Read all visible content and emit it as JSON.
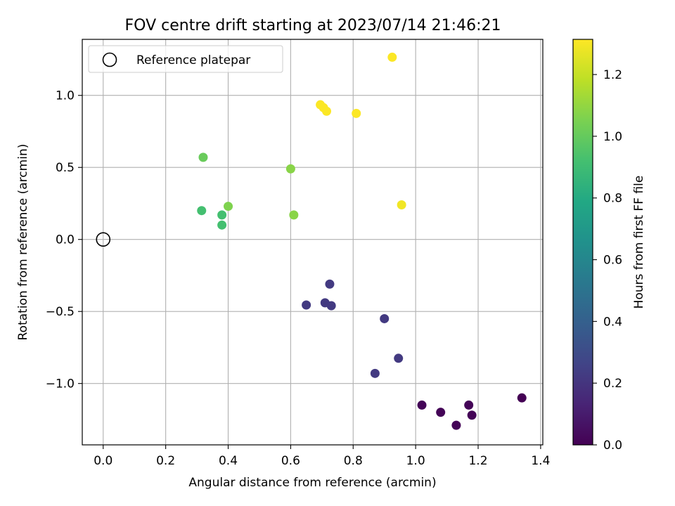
{
  "chart_data": {
    "type": "scatter",
    "title": "FOV centre drift starting at 2023/07/14 21:46:21",
    "xlabel": "Angular distance from reference (arcmin)",
    "ylabel": "Rotation from reference (arcmin)",
    "xlim": [
      -0.067,
      1.407
    ],
    "ylim": [
      -1.426,
      1.389
    ],
    "x_ticks": [
      0.0,
      0.2,
      0.4,
      0.6,
      0.8,
      1.0,
      1.2,
      1.4
    ],
    "x_tick_labels": [
      "0.0",
      "0.2",
      "0.4",
      "0.6",
      "0.8",
      "1.0",
      "1.2",
      "1.4"
    ],
    "y_ticks": [
      -1.0,
      -0.5,
      0.0,
      0.5,
      1.0
    ],
    "y_tick_labels": [
      "−1.0",
      "−0.5",
      "0.0",
      "0.5",
      "1.0"
    ],
    "grid": true,
    "legend": {
      "placement": "top-left",
      "entries": [
        "Reference platepar"
      ]
    },
    "reference_point": {
      "x": 0.0,
      "y": 0.0,
      "marker": "open-circle"
    },
    "colorbar": {
      "label": "Hours from first FF file",
      "colormap": "viridis",
      "range": [
        0.0,
        1.314
      ],
      "ticks": [
        0.0,
        0.2,
        0.4,
        0.6,
        0.8,
        1.0,
        1.2
      ],
      "tick_labels": [
        "0.0",
        "0.2",
        "0.4",
        "0.6",
        "0.8",
        "1.0",
        "1.2"
      ]
    },
    "points": [
      {
        "x": 1.34,
        "y": -1.1,
        "hours": 0.0
      },
      {
        "x": 1.02,
        "y": -1.15,
        "hours": 0.01
      },
      {
        "x": 1.08,
        "y": -1.2,
        "hours": 0.01
      },
      {
        "x": 1.13,
        "y": -1.29,
        "hours": 0.01
      },
      {
        "x": 1.17,
        "y": -1.15,
        "hours": 0.01
      },
      {
        "x": 1.18,
        "y": -1.22,
        "hours": 0.01
      },
      {
        "x": 0.87,
        "y": -0.93,
        "hours": 0.22
      },
      {
        "x": 0.945,
        "y": -0.825,
        "hours": 0.22
      },
      {
        "x": 0.9,
        "y": -0.55,
        "hours": 0.22
      },
      {
        "x": 0.65,
        "y": -0.455,
        "hours": 0.22
      },
      {
        "x": 0.71,
        "y": -0.44,
        "hours": 0.22
      },
      {
        "x": 0.73,
        "y": -0.46,
        "hours": 0.22
      },
      {
        "x": 0.725,
        "y": -0.31,
        "hours": 0.22
      },
      {
        "x": 0.315,
        "y": 0.2,
        "hours": 0.92
      },
      {
        "x": 0.38,
        "y": 0.1,
        "hours": 0.92
      },
      {
        "x": 0.38,
        "y": 0.17,
        "hours": 0.92
      },
      {
        "x": 0.32,
        "y": 0.57,
        "hours": 1.01
      },
      {
        "x": 0.4,
        "y": 0.23,
        "hours": 1.06
      },
      {
        "x": 0.6,
        "y": 0.49,
        "hours": 1.08
      },
      {
        "x": 0.61,
        "y": 0.17,
        "hours": 1.08
      },
      {
        "x": 0.955,
        "y": 0.24,
        "hours": 1.29
      },
      {
        "x": 0.695,
        "y": 0.935,
        "hours": 1.31
      },
      {
        "x": 0.705,
        "y": 0.915,
        "hours": 1.31
      },
      {
        "x": 0.715,
        "y": 0.89,
        "hours": 1.31
      },
      {
        "x": 0.81,
        "y": 0.875,
        "hours": 1.31
      },
      {
        "x": 0.925,
        "y": 1.265,
        "hours": 1.31
      }
    ]
  }
}
